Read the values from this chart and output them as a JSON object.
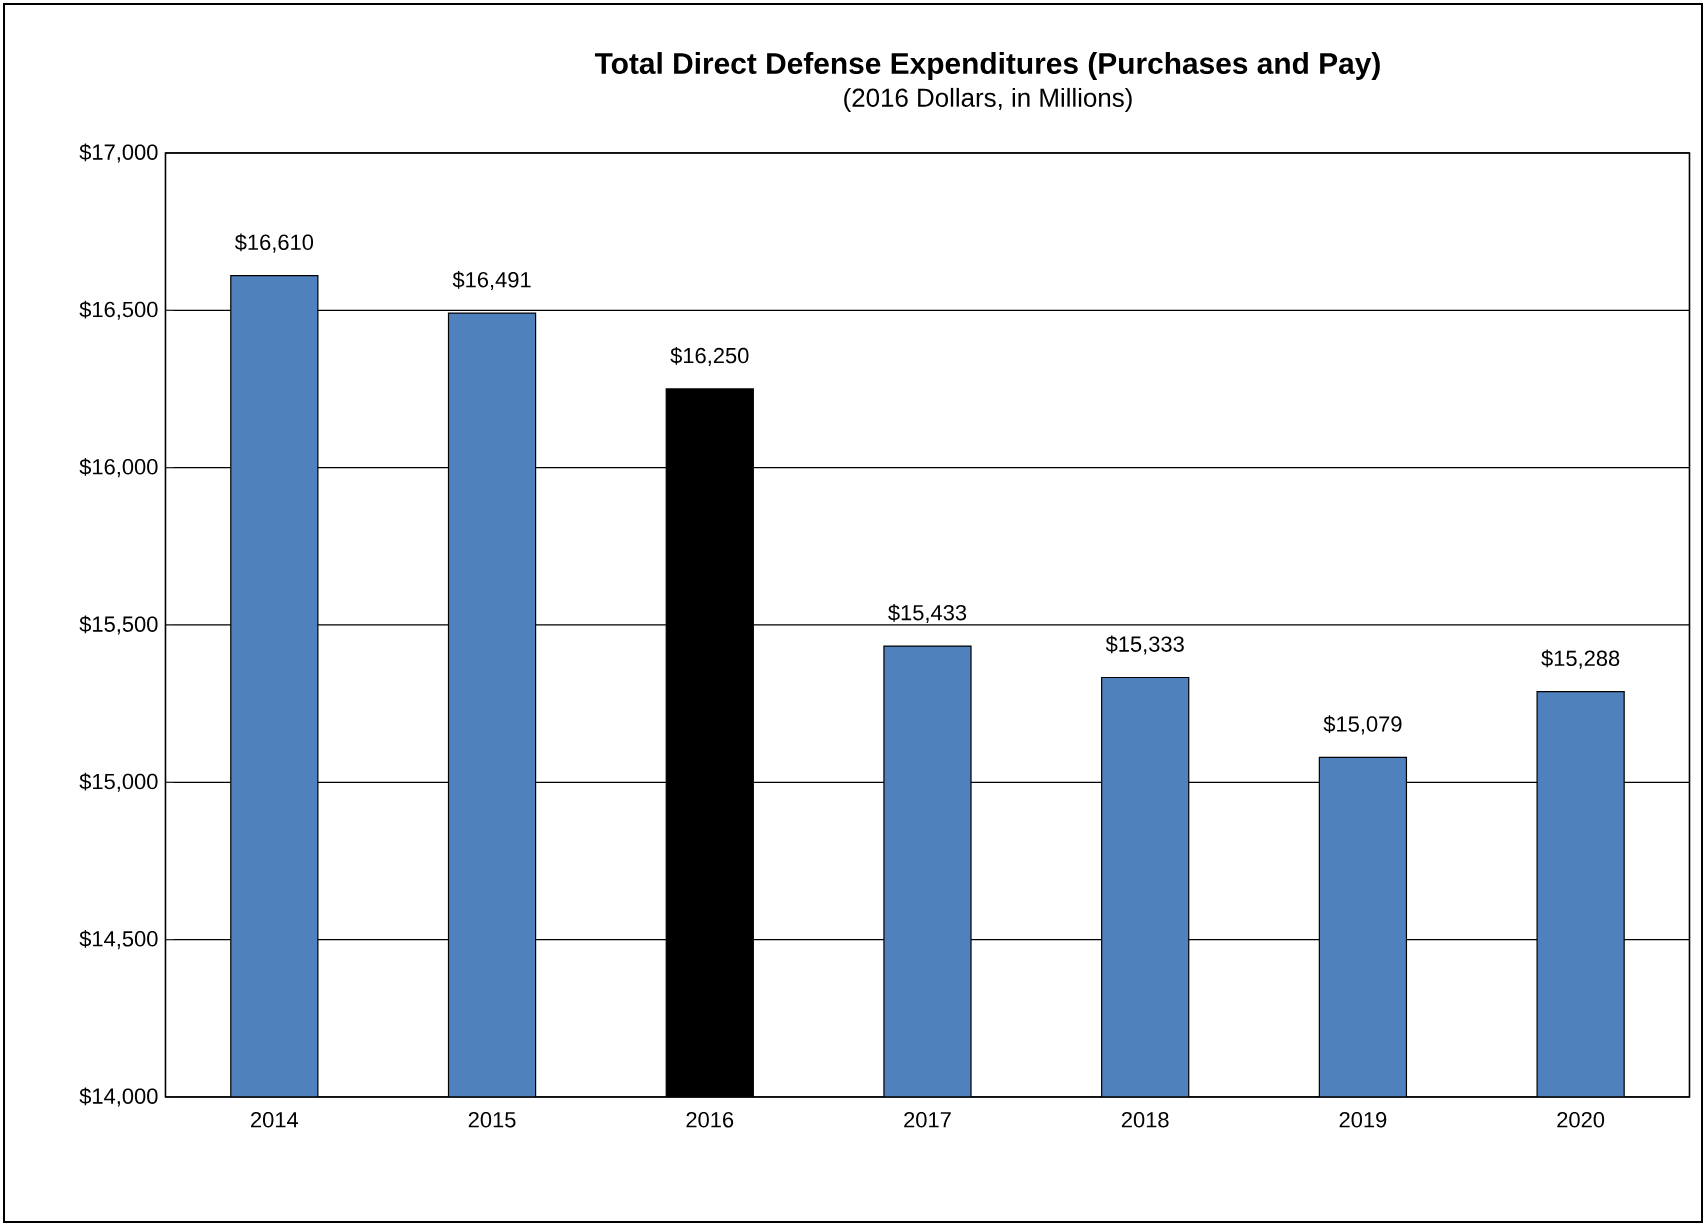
{
  "chart_data": {
    "type": "bar",
    "title": "Total Direct Defense Expenditures (Purchases and Pay)",
    "subtitle": "(2016 Dollars, in Millions)",
    "categories": [
      "2014",
      "2015",
      "2016",
      "2017",
      "2018",
      "2019",
      "2020"
    ],
    "values": [
      16610,
      16491,
      16250,
      15433,
      15333,
      15079,
      15288
    ],
    "colors": [
      "#4f81bd",
      "#4f81bd",
      "#000000",
      "#4f81bd",
      "#4f81bd",
      "#4f81bd",
      "#4f81bd"
    ],
    "value_labels": [
      "$16,610",
      "$16,491",
      "$16,250",
      "$15,433",
      "$15,333",
      "$15,079",
      "$15,288"
    ],
    "ylim": [
      14000,
      17000
    ],
    "yticks": [
      {
        "value": 14000,
        "label": "$14,000"
      },
      {
        "value": 14500,
        "label": "$14,500"
      },
      {
        "value": 15000,
        "label": "$15,000"
      },
      {
        "value": 15500,
        "label": "$15,500"
      },
      {
        "value": 16000,
        "label": "$16,000"
      },
      {
        "value": 16500,
        "label": "$16,500"
      },
      {
        "value": 17000,
        "label": "$17,000"
      }
    ],
    "grid": "y"
  }
}
